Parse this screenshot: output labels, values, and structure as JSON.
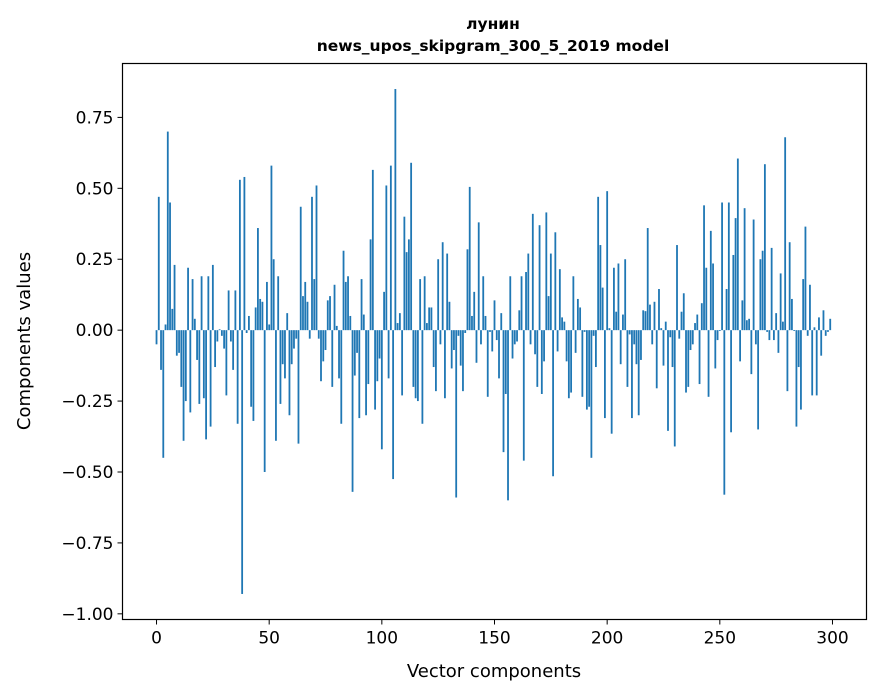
{
  "chart_data": {
    "type": "bar",
    "title": [
      "лунин",
      "news_upos_skipgram_300_5_2019 model"
    ],
    "xlabel": "Vector components",
    "ylabel": "Components values",
    "xlim": [
      -15.1,
      315.1
    ],
    "ylim": [
      -1.02,
      0.94
    ],
    "xticks": [
      0,
      50,
      100,
      150,
      200,
      250,
      300
    ],
    "xtick_labels": [
      "0",
      "50",
      "100",
      "150",
      "200",
      "250",
      "300"
    ],
    "yticks": [
      -1.0,
      -0.75,
      -0.5,
      -0.25,
      0.0,
      0.25,
      0.5,
      0.75
    ],
    "ytick_labels": [
      "−1.00",
      "−0.75",
      "−0.50",
      "−0.25",
      "0.00",
      "0.25",
      "0.50",
      "0.75"
    ],
    "grid": false,
    "color": "#1f77b4",
    "values": [
      -0.05,
      0.47,
      -0.14,
      -0.45,
      0.02,
      0.7,
      0.45,
      0.075,
      0.23,
      -0.09,
      -0.08,
      -0.2,
      -0.39,
      -0.25,
      0.22,
      -0.29,
      0.18,
      0.04,
      -0.105,
      -0.26,
      0.19,
      -0.24,
      -0.385,
      0.19,
      -0.34,
      0.23,
      -0.13,
      -0.04,
      0.003,
      -0.02,
      -0.065,
      -0.23,
      0.14,
      -0.04,
      -0.14,
      0.14,
      -0.33,
      0.53,
      -0.93,
      0.54,
      -0.01,
      0.05,
      -0.27,
      -0.32,
      0.08,
      0.36,
      0.11,
      0.1,
      -0.5,
      0.17,
      0.02,
      0.58,
      0.25,
      -0.39,
      0.19,
      -0.26,
      -0.12,
      -0.17,
      0.06,
      -0.3,
      -0.12,
      -0.065,
      -0.03,
      -0.4,
      0.435,
      0.12,
      0.17,
      0.1,
      -0.03,
      0.47,
      0.18,
      0.51,
      -0.03,
      -0.18,
      -0.11,
      -0.07,
      0.105,
      0.12,
      -0.2,
      0.16,
      0.015,
      -0.17,
      -0.33,
      0.28,
      0.17,
      0.19,
      0.05,
      -0.57,
      -0.16,
      -0.08,
      -0.31,
      0.18,
      0.055,
      -0.3,
      -0.19,
      0.32,
      0.565,
      -0.28,
      -0.18,
      -0.1,
      -0.42,
      0.135,
      0.51,
      -0.17,
      0.58,
      -0.525,
      0.85,
      0.025,
      0.06,
      -0.23,
      0.4,
      0.275,
      0.32,
      0.59,
      -0.2,
      -0.24,
      -0.25,
      0.18,
      -0.33,
      0.19,
      0.025,
      0.08,
      0.08,
      -0.13,
      -0.215,
      0.25,
      -0.05,
      0.31,
      -0.24,
      0.27,
      0.1,
      -0.135,
      -0.07,
      -0.59,
      -0.02,
      -0.125,
      -0.215,
      -0.01,
      0.285,
      0.505,
      0.05,
      0.135,
      -0.115,
      0.38,
      -0.05,
      0.19,
      0.05,
      -0.235,
      -0.006,
      -0.075,
      0.105,
      -0.035,
      -0.17,
      0.06,
      -0.43,
      -0.225,
      -0.6,
      0.19,
      -0.1,
      -0.05,
      -0.04,
      0.07,
      0.19,
      -0.46,
      0.205,
      0.27,
      -0.05,
      0.41,
      -0.085,
      -0.2,
      0.37,
      -0.225,
      -0.11,
      0.415,
      0.12,
      0.27,
      -0.515,
      0.345,
      -0.075,
      0.215,
      0.045,
      0.03,
      -0.11,
      -0.24,
      -0.22,
      0.19,
      -0.08,
      0.11,
      0.08,
      -0.235,
      -0.006,
      -0.28,
      -0.27,
      -0.45,
      -0.02,
      -0.13,
      0.47,
      0.3,
      0.15,
      -0.31,
      0.49,
      0.007,
      -0.365,
      0.22,
      0.065,
      0.235,
      -0.12,
      0.055,
      0.25,
      -0.2,
      -0.015,
      -0.31,
      -0.05,
      -0.12,
      -0.3,
      -0.105,
      0.07,
      0.067,
      0.36,
      0.09,
      -0.05,
      0.1,
      -0.205,
      0.145,
      0.007,
      -0.125,
      0.03,
      -0.355,
      -0.025,
      -0.13,
      -0.41,
      0.3,
      -0.03,
      0.065,
      0.13,
      -0.22,
      -0.2,
      -0.07,
      -0.05,
      0.025,
      0.055,
      -0.19,
      0.095,
      0.44,
      0.22,
      -0.235,
      0.35,
      0.235,
      -0.135,
      -0.035,
      -0.003,
      0.45,
      -0.58,
      0.145,
      0.45,
      -0.36,
      0.265,
      0.395,
      0.605,
      -0.11,
      0.105,
      0.43,
      0.035,
      0.04,
      -0.155,
      0.39,
      -0.05,
      -0.35,
      0.25,
      0.28,
      0.585,
      -0.006,
      -0.035,
      0.29,
      -0.035,
      0.06,
      -0.08,
      0.2,
      0.03,
      0.68,
      -0.215,
      0.31,
      0.11,
      -0.003,
      -0.34,
      -0.13,
      -0.28,
      0.18,
      0.365,
      -0.02,
      0.16,
      -0.23,
      0.01,
      -0.23,
      0.045,
      -0.09,
      0.07,
      -0.02,
      -0.006,
      0.04
    ]
  }
}
